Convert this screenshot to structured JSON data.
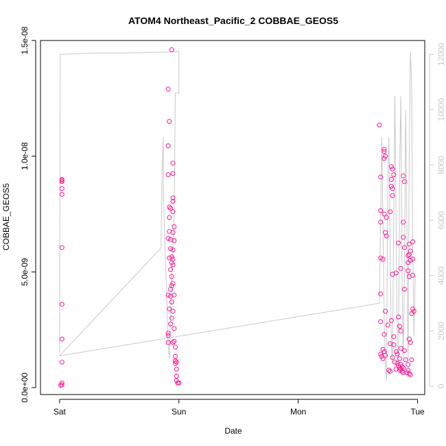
{
  "chart_data": {
    "type": "scatter",
    "title": "ATOM4 Northeast_Pacific_2 COBBAE_GEOS5",
    "xlabel": "Date",
    "ylabel": "COBBAE_GEOS5",
    "x_ticks": [
      {
        "value": 0,
        "label": "Sat"
      },
      {
        "value": 1,
        "label": "Sun"
      },
      {
        "value": 2,
        "label": "Mon"
      },
      {
        "value": 3,
        "label": "Tue"
      }
    ],
    "xlim": [
      -0.16,
      3.06
    ],
    "ylim": [
      -3e-10,
      1.5e-08
    ],
    "y_ticks": [
      {
        "value": 0,
        "label": "0.0e+00"
      },
      {
        "value": 5e-09,
        "label": "5.0e-09"
      },
      {
        "value": 1e-08,
        "label": "1.0e-08"
      },
      {
        "value": 1.5e-08,
        "label": "1.5e-08"
      }
    ],
    "y2lim": [
      -300,
      12500
    ],
    "y2_ticks": [
      {
        "value": 0,
        "label": "0"
      },
      {
        "value": 2000,
        "label": "2000"
      },
      {
        "value": 4000,
        "label": "4000"
      },
      {
        "value": 6000,
        "label": "6000"
      },
      {
        "value": 8000,
        "label": "8000"
      },
      {
        "value": 10000,
        "label": "10000"
      },
      {
        "value": 12000,
        "label": "12000"
      }
    ],
    "grid": false,
    "colors": {
      "points": "#ff1493",
      "altitude_line": "#c8c8c8",
      "axis": "#000000",
      "right_axis": "#c8c8c8"
    },
    "series": [
      {
        "marker": "open-circle",
        "points": [
          [
            0.02,
            1.2e-10
          ],
          [
            0.02,
            2e-10
          ],
          [
            0.02,
            1.1e-09
          ],
          [
            0.02,
            2.1e-09
          ],
          [
            0.02,
            3.6e-09
          ],
          [
            0.02,
            6.05e-09
          ],
          [
            0.02,
            8.35e-09
          ],
          [
            0.02,
            8.6e-09
          ],
          [
            0.02,
            8.9e-09
          ],
          [
            0.02,
            8.95e-09
          ],
          [
            0.02,
            9e-09
          ],
          [
            0.01,
            1e-10
          ],
          [
            0.91,
            1.29e-08
          ],
          [
            0.92,
            1.15e-08
          ],
          [
            0.91,
            1.045e-08
          ],
          [
            0.95,
            9.7e-09
          ],
          [
            0.91,
            9.2e-09
          ],
          [
            0.95,
            9.25e-09
          ],
          [
            0.95,
            8.2e-09
          ],
          [
            0.95,
            8.05e-09
          ],
          [
            0.92,
            7.8e-09
          ],
          [
            0.93,
            7.75e-09
          ],
          [
            0.95,
            7.6e-09
          ],
          [
            0.92,
            7.35e-09
          ],
          [
            0.96,
            6.95e-09
          ],
          [
            0.92,
            6.75e-09
          ],
          [
            0.95,
            6.7e-09
          ],
          [
            0.91,
            6.45e-09
          ],
          [
            0.93,
            6.4e-09
          ],
          [
            0.96,
            6.35e-09
          ],
          [
            0.93,
            6e-09
          ],
          [
            0.95,
            5.95e-09
          ],
          [
            0.94,
            5.65e-09
          ],
          [
            0.92,
            5.6e-09
          ],
          [
            0.95,
            5.55e-09
          ],
          [
            0.94,
            5.4e-09
          ],
          [
            0.95,
            5.3e-09
          ],
          [
            0.93,
            5.1e-09
          ],
          [
            0.94,
            4.8e-09
          ],
          [
            0.95,
            4.5e-09
          ],
          [
            0.94,
            4.4e-09
          ],
          [
            0.93,
            4.25e-09
          ],
          [
            0.91,
            4e-09
          ],
          [
            0.93,
            3.95e-09
          ],
          [
            0.96,
            4e-09
          ],
          [
            0.94,
            3.7e-09
          ],
          [
            0.92,
            3.4e-09
          ],
          [
            0.95,
            3.3e-09
          ],
          [
            0.94,
            3e-09
          ],
          [
            0.93,
            2.75e-09
          ],
          [
            0.96,
            2.55e-09
          ],
          [
            0.91,
            2.35e-09
          ],
          [
            0.91,
            2.25e-09
          ],
          [
            0.96,
            2e-09
          ],
          [
            0.91,
            1.95e-09
          ],
          [
            0.95,
            1.95e-09
          ],
          [
            0.97,
            1.75e-09
          ],
          [
            0.97,
            1.35e-09
          ],
          [
            0.97,
            1.15e-09
          ],
          [
            0.98,
            1.1e-09
          ],
          [
            0.97,
            1.05e-09
          ],
          [
            0.98,
            8e-10
          ],
          [
            0.98,
            5e-10
          ],
          [
            0.98,
            3e-10
          ],
          [
            0.99,
            2e-10
          ],
          [
            1,
            2e-10
          ],
          [
            0.94,
            1.46e-08
          ],
          [
            2.68,
            1.135e-08
          ],
          [
            2.72,
            1.03e-08
          ],
          [
            2.72,
            1.02e-08
          ],
          [
            2.73,
            1e-08
          ],
          [
            2.72,
            9.9e-09
          ],
          [
            2.78,
            9.55e-09
          ],
          [
            2.79,
            9.45e-09
          ],
          [
            2.8,
            9.2e-09
          ],
          [
            2.78,
            9e-09
          ],
          [
            2.69,
            9.1e-09
          ],
          [
            2.78,
            8.7e-09
          ],
          [
            2.79,
            8.6e-09
          ],
          [
            2.88,
            9.15e-09
          ],
          [
            2.89,
            8.9e-09
          ],
          [
            2.79,
            8.3e-09
          ],
          [
            2.72,
            7.5e-09
          ],
          [
            2.69,
            7.65e-09
          ],
          [
            2.77,
            7.6e-09
          ],
          [
            2.74,
            7.35e-09
          ],
          [
            2.69,
            7.15e-09
          ],
          [
            2.88,
            7.15e-09
          ],
          [
            2.73,
            6.7e-09
          ],
          [
            2.74,
            6.55e-09
          ],
          [
            2.88,
            6.5e-09
          ],
          [
            2.96,
            6.3e-09
          ],
          [
            2.84,
            6.25e-09
          ],
          [
            2.93,
            6.2e-09
          ],
          [
            2.89,
            6.05e-09
          ],
          [
            2.94,
            5.9e-09
          ],
          [
            2.93,
            5.75e-09
          ],
          [
            2.92,
            5.7e-09
          ],
          [
            2.69,
            5.6e-09
          ],
          [
            2.71,
            5.55e-09
          ],
          [
            2.96,
            5.55e-09
          ],
          [
            2.94,
            5.5e-09
          ],
          [
            2.92,
            5.4e-09
          ],
          [
            2.86,
            5.15e-09
          ],
          [
            2.92,
            5.05e-09
          ],
          [
            2.79,
            4.9e-09
          ],
          [
            2.82,
            4.95e-09
          ],
          [
            2.96,
            4.85e-09
          ],
          [
            2.93,
            4.8e-09
          ],
          [
            2.89,
            4.25e-09
          ],
          [
            2.69,
            4.05e-09
          ],
          [
            2.96,
            3.4e-09
          ],
          [
            2.97,
            3.3e-09
          ],
          [
            2.95,
            3.2e-09
          ],
          [
            2.73,
            3.3e-09
          ],
          [
            2.84,
            3.05e-09
          ],
          [
            2.78,
            2.9e-09
          ],
          [
            2.69,
            2.85e-09
          ],
          [
            2.75,
            2.7e-09
          ],
          [
            2.85,
            2.65e-09
          ],
          [
            2.86,
            2.45e-09
          ],
          [
            2.72,
            2.3e-09
          ],
          [
            2.8,
            2.2e-09
          ],
          [
            2.93,
            2.1e-09
          ],
          [
            2.94,
            1.95e-09
          ],
          [
            2.77,
            1.9e-09
          ],
          [
            2.8,
            1.85e-09
          ],
          [
            2.71,
            1.65e-09
          ],
          [
            2.86,
            1.7e-09
          ],
          [
            2.89,
            1.6e-09
          ],
          [
            2.82,
            1.55e-09
          ],
          [
            2.83,
            1.45e-09
          ],
          [
            2.69,
            1.45e-09
          ],
          [
            2.7,
            1.35e-09
          ],
          [
            2.71,
            1.25e-09
          ],
          [
            2.79,
            1.3e-09
          ],
          [
            2.85,
            1.25e-09
          ],
          [
            2.9,
            1.2e-09
          ],
          [
            2.95,
            1.2e-09
          ],
          [
            2.81,
            1.1e-09
          ],
          [
            2.83,
            1.05e-09
          ],
          [
            2.86,
            1e-09
          ],
          [
            2.84,
            9.5e-10
          ],
          [
            2.87,
            9e-10
          ],
          [
            2.85,
            8.5e-10
          ],
          [
            2.82,
            8e-10
          ],
          [
            2.76,
            7.5e-10
          ],
          [
            2.77,
            7e-10
          ],
          [
            2.88,
            8.5e-10
          ],
          [
            2.92,
            7.5e-10
          ],
          [
            2.91,
            6.5e-10
          ],
          [
            2.93,
            6e-10
          ],
          [
            2.94,
            5.5e-10
          ],
          [
            2.72,
            1.55e-09
          ],
          [
            2.73,
            1.4e-09
          ],
          [
            2.86,
            8e-10
          ],
          [
            2.85,
            7.5e-10
          ],
          [
            2.87,
            7e-10
          ],
          [
            2.92,
            1e-09
          ],
          [
            2.88,
            6.5e-10
          ]
        ]
      }
    ],
    "altitude_line": [
      [
        0,
        1200
      ],
      [
        0.005,
        12000
      ],
      [
        0.02,
        12000
      ],
      [
        0.3,
        12050
      ],
      [
        0.6,
        12050
      ],
      [
        0.9,
        12080
      ],
      [
        1,
        12100
      ],
      [
        1,
        10600
      ],
      [
        0.97,
        10600
      ],
      [
        0.96,
        6000
      ],
      [
        0.94,
        4000
      ],
      [
        0.92,
        1000
      ],
      [
        0.91,
        1500
      ],
      [
        0.9,
        3000
      ],
      [
        0.88,
        5500
      ],
      [
        0.87,
        7000
      ],
      [
        0.87,
        9000
      ],
      [
        0.86,
        8000
      ],
      [
        0.85,
        5000
      ],
      [
        0,
        1100
      ],
      [
        2.68,
        3000
      ],
      [
        2.7,
        9000
      ],
      [
        2.71,
        6000
      ],
      [
        2.72,
        2500
      ],
      [
        2.73,
        700
      ],
      [
        2.74,
        200
      ],
      [
        2.75,
        7500
      ],
      [
        2.76,
        9000
      ],
      [
        2.77,
        5000
      ],
      [
        2.78,
        1500
      ],
      [
        2.79,
        800
      ],
      [
        2.8,
        6000
      ],
      [
        2.81,
        10500
      ],
      [
        2.82,
        6000
      ],
      [
        2.83,
        1500
      ],
      [
        2.84,
        700
      ],
      [
        2.85,
        8000
      ],
      [
        2.86,
        10500
      ],
      [
        2.87,
        3500
      ],
      [
        2.88,
        1000
      ],
      [
        2.89,
        4000
      ],
      [
        2.9,
        10000
      ],
      [
        2.91,
        6000
      ],
      [
        2.92,
        900
      ],
      [
        2.93,
        8000
      ],
      [
        2.94,
        12100
      ],
      [
        2.95,
        11000
      ],
      [
        2.96,
        5000
      ],
      [
        2.97,
        1800
      ],
      [
        2.98,
        4000
      ]
    ]
  }
}
